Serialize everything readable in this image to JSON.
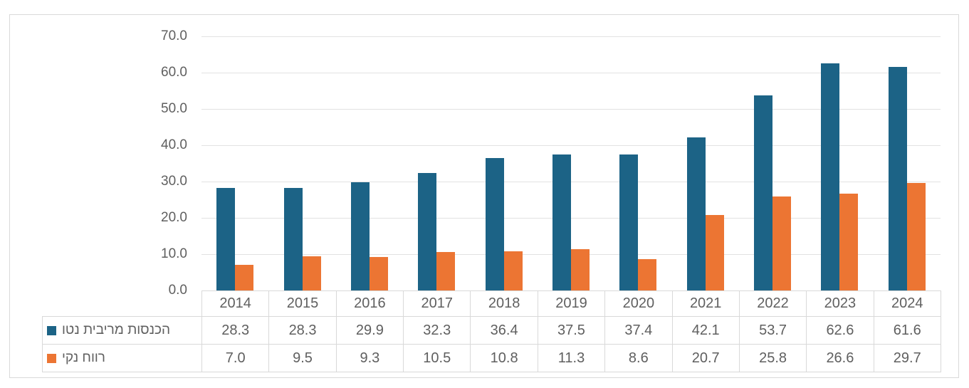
{
  "chart_data": {
    "type": "bar",
    "title": "",
    "xlabel": "",
    "ylabel": "",
    "categories": [
      "2014",
      "2015",
      "2016",
      "2017",
      "2018",
      "2019",
      "2020",
      "2021",
      "2022",
      "2023",
      "2024"
    ],
    "series": [
      {
        "name": "הכנסות מריבית נטו",
        "color": "#1c6386",
        "values": [
          28.3,
          28.3,
          29.9,
          32.3,
          36.4,
          37.5,
          37.4,
          42.1,
          53.7,
          62.6,
          61.6
        ]
      },
      {
        "name": "רווח נקי",
        "color": "#ec7533",
        "values": [
          7.0,
          9.5,
          9.3,
          10.5,
          10.8,
          11.3,
          8.6,
          20.7,
          25.8,
          26.6,
          29.7
        ]
      }
    ],
    "ylim": [
      0,
      70
    ],
    "ytick_step": 10,
    "ytick_decimals": 1,
    "grid": true,
    "legend_position": "data-table-left",
    "value_decimals": 1
  },
  "style": {
    "gridline_color": "#e2e2e2",
    "table_border_color": "#d9d9d9",
    "text_color": "#5f5f5f",
    "figure_border_color": "#d9d9d9",
    "background": "#ffffff"
  }
}
